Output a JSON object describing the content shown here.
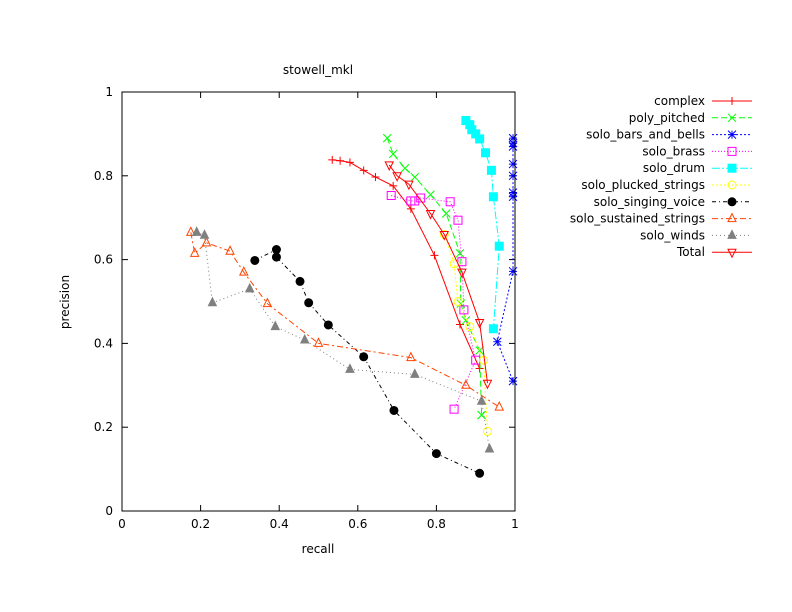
{
  "chart_data": {
    "type": "line",
    "title": "stowell_mkl",
    "xlabel": "recall",
    "ylabel": "precision",
    "xlim": [
      0,
      1
    ],
    "ylim": [
      0,
      1
    ],
    "xticks": [
      "0",
      "0.2",
      "0.4",
      "0.6",
      "0.8",
      "1"
    ],
    "yticks": [
      "0",
      "0.2",
      "0.4",
      "0.6",
      "0.8",
      "1"
    ],
    "grid": false,
    "legend_position": "right",
    "series": [
      {
        "name": "complex",
        "color": "#ff0000",
        "marker": "plus",
        "dash": "",
        "points": [
          [
            0.535,
            0.838
          ],
          [
            0.555,
            0.836
          ],
          [
            0.58,
            0.832
          ],
          [
            0.615,
            0.813
          ],
          [
            0.645,
            0.797
          ],
          [
            0.69,
            0.776
          ],
          [
            0.735,
            0.721
          ],
          [
            0.795,
            0.61
          ],
          [
            0.86,
            0.445
          ],
          [
            0.91,
            0.34
          ]
        ]
      },
      {
        "name": "poly_pitched",
        "color": "#00ff00",
        "marker": "x",
        "dash": "6,3",
        "points": [
          [
            0.675,
            0.89
          ],
          [
            0.69,
            0.852
          ],
          [
            0.72,
            0.818
          ],
          [
            0.745,
            0.797
          ],
          [
            0.785,
            0.755
          ],
          [
            0.825,
            0.71
          ],
          [
            0.86,
            0.615
          ],
          [
            0.862,
            0.495
          ],
          [
            0.875,
            0.455
          ],
          [
            0.91,
            0.383
          ],
          [
            0.915,
            0.229
          ],
          [
            0.915,
            0.229
          ]
        ]
      },
      {
        "name": "solo_bars_and_bells",
        "color": "#0000ff",
        "marker": "star",
        "dash": "2,2",
        "points": [
          [
            0.995,
            0.89
          ],
          [
            0.995,
            0.878
          ],
          [
            0.995,
            0.87
          ],
          [
            0.995,
            0.828
          ],
          [
            0.995,
            0.8
          ],
          [
            0.995,
            0.76
          ],
          [
            0.995,
            0.75
          ],
          [
            0.995,
            0.572
          ],
          [
            0.955,
            0.404
          ],
          [
            0.995,
            0.31
          ]
        ]
      },
      {
        "name": "solo_brass",
        "color": "#ff00ff",
        "marker": "square",
        "dash": "1,2",
        "points": [
          [
            0.685,
            0.753
          ],
          [
            0.735,
            0.74
          ],
          [
            0.745,
            0.74
          ],
          [
            0.76,
            0.747
          ],
          [
            0.835,
            0.738
          ],
          [
            0.855,
            0.694
          ],
          [
            0.865,
            0.595
          ],
          [
            0.87,
            0.48
          ],
          [
            0.9,
            0.36
          ],
          [
            0.845,
            0.243
          ]
        ]
      },
      {
        "name": "solo_drum",
        "color": "#00ffff",
        "marker": "filledsquare",
        "dash": "8,2,2,2",
        "points": [
          [
            0.875,
            0.932
          ],
          [
            0.885,
            0.922
          ],
          [
            0.89,
            0.91
          ],
          [
            0.9,
            0.9
          ],
          [
            0.91,
            0.888
          ],
          [
            0.925,
            0.855
          ],
          [
            0.94,
            0.813
          ],
          [
            0.945,
            0.75
          ],
          [
            0.96,
            0.632
          ],
          [
            0.945,
            0.435
          ]
        ]
      },
      {
        "name": "solo_plucked_strings",
        "color": "#ffff00",
        "marker": "circle",
        "dash": "2,2",
        "points": [
          [
            0.82,
            0.66
          ],
          [
            0.845,
            0.59
          ],
          [
            0.855,
            0.5
          ],
          [
            0.885,
            0.44
          ],
          [
            0.92,
            0.36
          ],
          [
            0.93,
            0.19
          ]
        ]
      },
      {
        "name": "solo_singing_voice",
        "color": "#000000",
        "marker": "filledcircle",
        "dash": "4,3,1,3",
        "points": [
          [
            0.338,
            0.598
          ],
          [
            0.393,
            0.624
          ],
          [
            0.393,
            0.606
          ],
          [
            0.453,
            0.548
          ],
          [
            0.475,
            0.497
          ],
          [
            0.525,
            0.444
          ],
          [
            0.615,
            0.368
          ],
          [
            0.692,
            0.24
          ],
          [
            0.8,
            0.137
          ],
          [
            0.91,
            0.09
          ]
        ]
      },
      {
        "name": "solo_sustained_strings",
        "color": "#ff4400",
        "marker": "triangle",
        "dash": "6,3,2,3",
        "points": [
          [
            0.175,
            0.665
          ],
          [
            0.185,
            0.615
          ],
          [
            0.215,
            0.64
          ],
          [
            0.275,
            0.62
          ],
          [
            0.31,
            0.57
          ],
          [
            0.37,
            0.495
          ],
          [
            0.5,
            0.4
          ],
          [
            0.735,
            0.366
          ],
          [
            0.875,
            0.3
          ],
          [
            0.96,
            0.248
          ]
        ]
      },
      {
        "name": "solo_winds",
        "color": "#808080",
        "marker": "filledtriangle",
        "dash": "1,3",
        "points": [
          [
            0.19,
            0.665
          ],
          [
            0.21,
            0.658
          ],
          [
            0.23,
            0.497
          ],
          [
            0.325,
            0.53
          ],
          [
            0.39,
            0.44
          ],
          [
            0.465,
            0.408
          ],
          [
            0.58,
            0.338
          ],
          [
            0.745,
            0.326
          ],
          [
            0.915,
            0.262
          ],
          [
            0.935,
            0.148
          ]
        ]
      },
      {
        "name": "Total",
        "color": "#ff0000",
        "marker": "invtriangle",
        "dash": "",
        "points": [
          [
            0.68,
            0.826
          ],
          [
            0.7,
            0.8
          ],
          [
            0.73,
            0.78
          ],
          [
            0.785,
            0.71
          ],
          [
            0.82,
            0.66
          ],
          [
            0.865,
            0.57
          ],
          [
            0.91,
            0.45
          ],
          [
            0.93,
            0.305
          ]
        ]
      }
    ]
  }
}
